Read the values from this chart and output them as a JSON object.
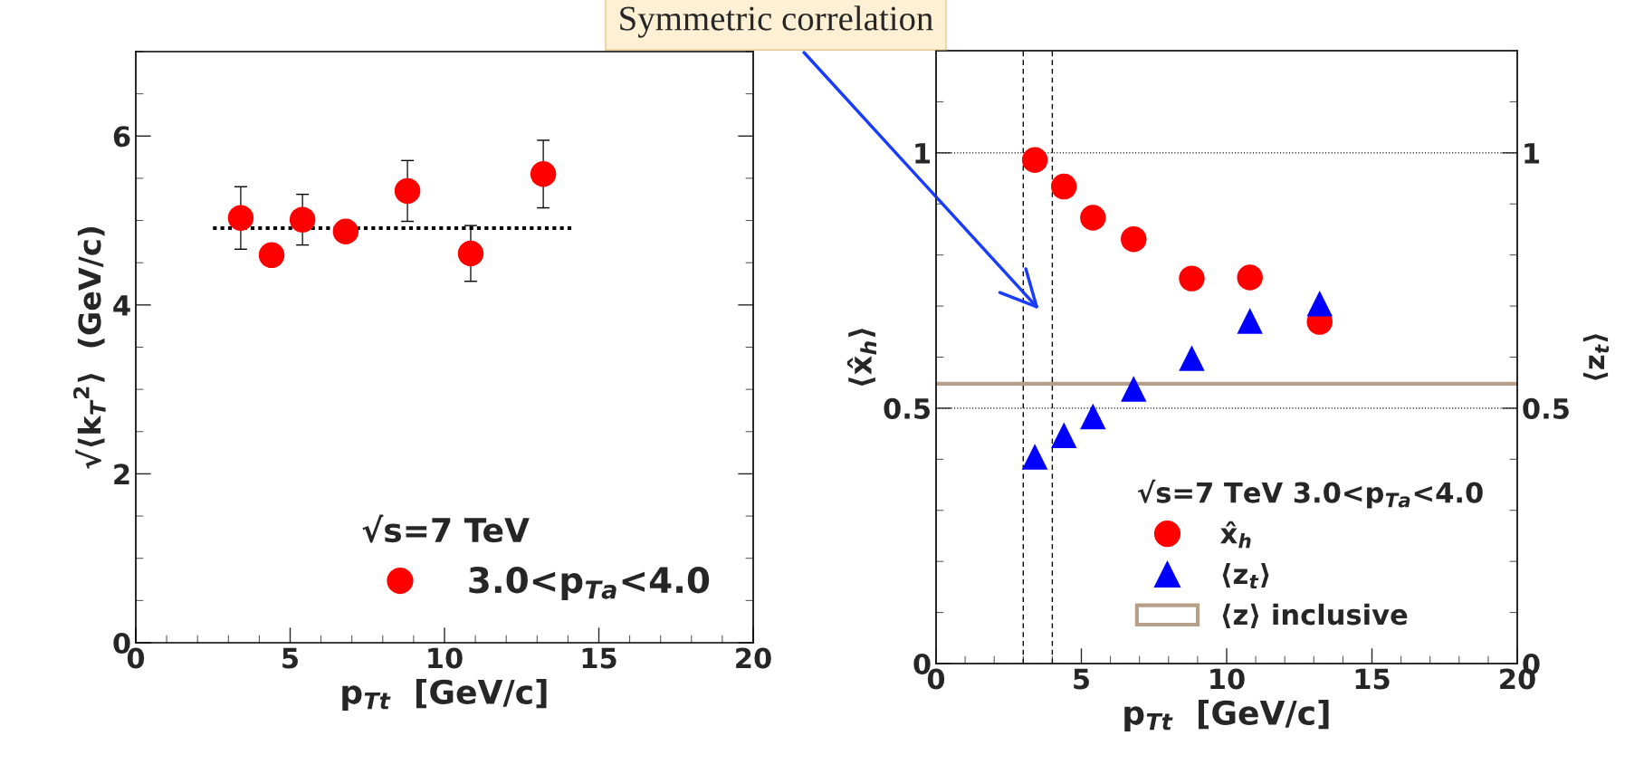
{
  "chart_data": [
    {
      "type": "scatter",
      "xlabel": "p$_{Tt}$  [GeV/c]",
      "ylabel": "√⟨k$_{T}$$^{2}$⟩  (GeV/c)",
      "legend_title": "√s=7 TeV",
      "legend": "bottom right",
      "marker": "circle",
      "xlim": [
        0,
        20
      ],
      "xticks": [
        0,
        5,
        10,
        15,
        20
      ],
      "ylim": [
        0,
        7
      ],
      "yticks": [
        0,
        2,
        4,
        6
      ],
      "series": [
        {
          "name": "3.0<p$_{Ta}$<4.0",
          "color": "#ff0000",
          "x": [
            3.4,
            4.4,
            5.4,
            6.8,
            8.8,
            10.85,
            13.2
          ],
          "values": [
            5.03,
            4.59,
            5.01,
            4.87,
            5.35,
            4.61,
            5.55
          ],
          "errors": [
            0.37,
            null,
            0.3,
            null,
            0.36,
            0.33,
            0.4
          ]
        },
        {
          "type": "line",
          "color": "#000000",
          "line_style": "dotted",
          "marker": "none",
          "x": [
            2.5,
            14.2
          ],
          "values": [
            4.91,
            4.91
          ]
        }
      ]
    },
    {
      "type": "scatter",
      "xlabel": "p$_{Tt}$  [GeV/c]",
      "ylabel": "⟨x̂$_{h}$⟩",
      "y2label": "⟨z$_{t}$⟩",
      "legend_title": "√s=7 TeV 3.0<p$_{Ta}$<4.0",
      "legend": "bottom right",
      "grid": "y",
      "xlim": [
        0,
        20
      ],
      "xticks": [
        0,
        5,
        10,
        15,
        20
      ],
      "ylim": [
        0,
        1.2
      ],
      "yticks": [
        0,
        0.5,
        1
      ],
      "y2lim": [
        0,
        1.2
      ],
      "y2ticks": [
        0,
        0.5,
        1
      ],
      "series": [
        {
          "name": "x̂$_{h}$",
          "color": "#ff0000",
          "marker": "circle",
          "x": [
            3.4,
            4.4,
            5.4,
            6.8,
            8.8,
            10.8,
            13.2
          ],
          "values": [
            0.986,
            0.934,
            0.873,
            0.831,
            0.754,
            0.756,
            0.669
          ]
        },
        {
          "name": "⟨z$_{t}$⟩",
          "color": "#0000ff",
          "marker": "triangle",
          "x": [
            3.4,
            4.4,
            5.4,
            6.8,
            8.8,
            10.8,
            13.2
          ],
          "values": [
            0.405,
            0.447,
            0.484,
            0.538,
            0.598,
            0.671,
            0.705
          ]
        }
      ],
      "ref_lines": [
        {
          "axis": "y",
          "value": 0.548,
          "label": "⟨z⟩ inclusive",
          "color": "#b8a088"
        },
        {
          "axis": "x",
          "value": 3,
          "color": "#000000",
          "line_style": "dashed"
        },
        {
          "axis": "x",
          "value": 4,
          "color": "#000000",
          "line_style": "dashed"
        }
      ],
      "annotations": [
        "Symmetric correlation"
      ]
    }
  ]
}
